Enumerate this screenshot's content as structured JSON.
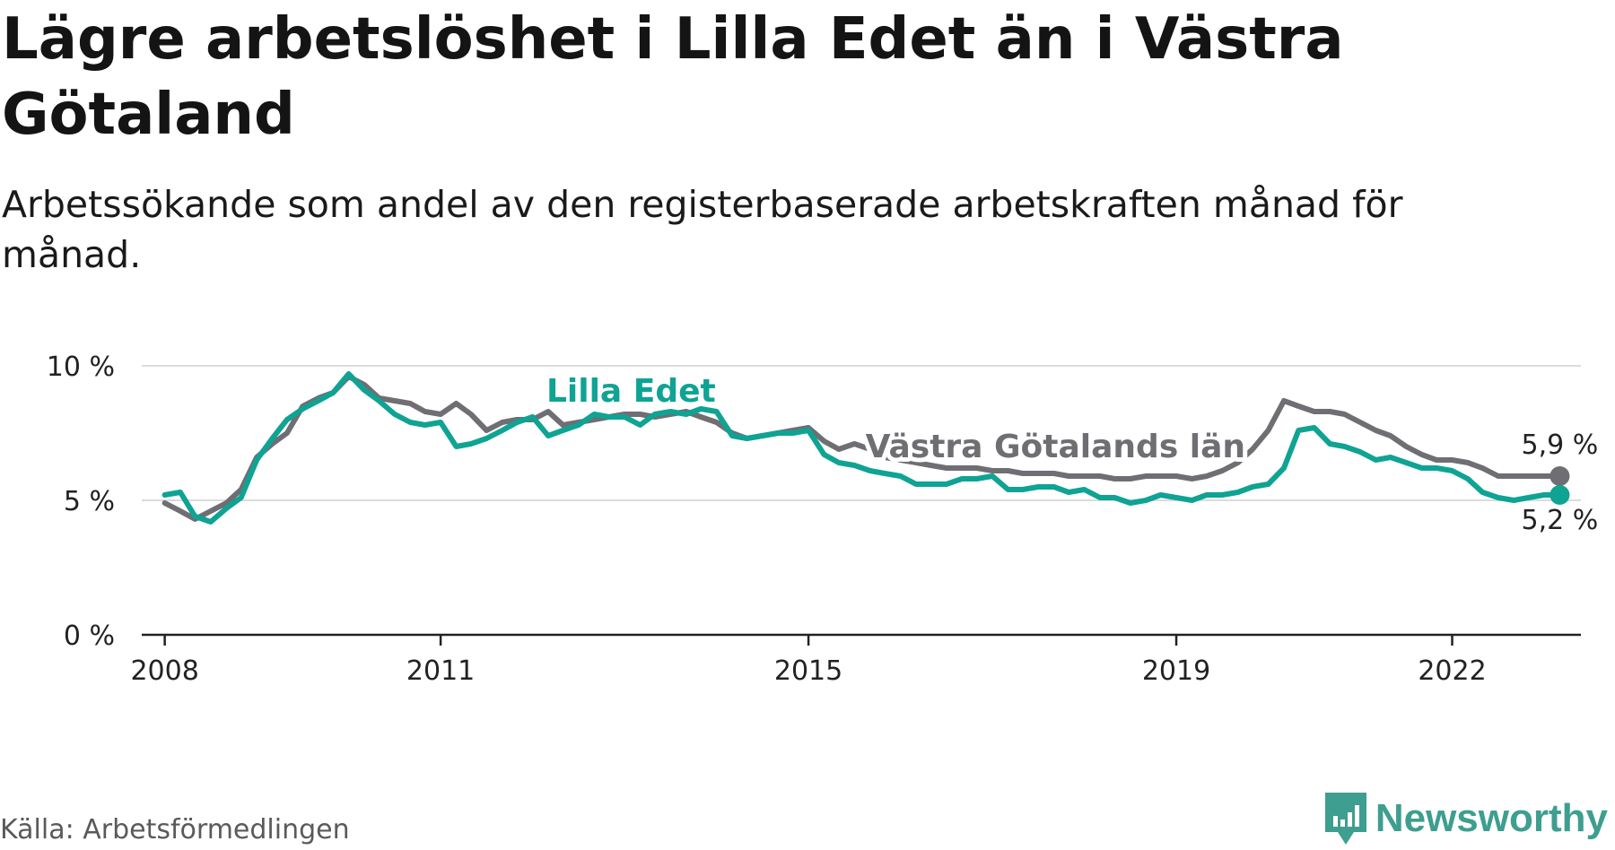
{
  "title": "Lägre arbetslöshet i Lilla Edet än i Västra Götaland",
  "subtitle": "Arbetssökande som andel av den registerbaserade arbetskraften månad för månad.",
  "source": "Källa: Arbetsförmedlingen",
  "brand": "Newsworthy",
  "chart_data": {
    "type": "line",
    "title": "Lägre arbetslöshet i Lilla Edet än i Västra Götaland",
    "xlabel": "",
    "ylabel": "",
    "xlim": [
      2007.75,
      2023.4
    ],
    "ylim": [
      0,
      10
    ],
    "yticks": [
      0,
      5,
      10
    ],
    "ytick_labels": [
      "0 %",
      "5 %",
      "10 %"
    ],
    "xticks": [
      2008,
      2011,
      2015,
      2019,
      2022
    ],
    "xtick_labels": [
      "2008",
      "2011",
      "2015",
      "2019",
      "2022"
    ],
    "grid": true,
    "series": [
      {
        "name": "Västra Götalands län",
        "color": "#6e6e73",
        "end_label": "5,9 %",
        "x": [
          2008.0,
          2008.17,
          2008.33,
          2008.5,
          2008.67,
          2008.83,
          2009.0,
          2009.17,
          2009.33,
          2009.5,
          2009.67,
          2009.83,
          2010.0,
          2010.17,
          2010.33,
          2010.5,
          2010.67,
          2010.83,
          2011.0,
          2011.17,
          2011.33,
          2011.5,
          2011.67,
          2011.83,
          2012.0,
          2012.17,
          2012.33,
          2012.5,
          2012.67,
          2012.83,
          2013.0,
          2013.17,
          2013.33,
          2013.5,
          2013.67,
          2013.83,
          2014.0,
          2014.17,
          2014.33,
          2014.5,
          2014.67,
          2014.83,
          2015.0,
          2015.17,
          2015.33,
          2015.5,
          2015.67,
          2015.83,
          2016.0,
          2016.17,
          2016.33,
          2016.5,
          2016.67,
          2016.83,
          2017.0,
          2017.17,
          2017.33,
          2017.5,
          2017.67,
          2017.83,
          2018.0,
          2018.17,
          2018.33,
          2018.5,
          2018.67,
          2018.83,
          2019.0,
          2019.17,
          2019.33,
          2019.5,
          2019.67,
          2019.83,
          2020.0,
          2020.17,
          2020.33,
          2020.5,
          2020.67,
          2020.83,
          2021.0,
          2021.17,
          2021.33,
          2021.5,
          2021.67,
          2021.83,
          2022.0,
          2022.17,
          2022.33,
          2022.5,
          2022.67,
          2022.83,
          2023.0,
          2023.17
        ],
        "values": [
          4.9,
          4.6,
          4.3,
          4.6,
          4.9,
          5.4,
          6.6,
          7.1,
          7.5,
          8.5,
          8.8,
          9.0,
          9.6,
          9.3,
          8.8,
          8.7,
          8.6,
          8.3,
          8.2,
          8.6,
          8.2,
          7.6,
          7.9,
          8.0,
          8.0,
          8.3,
          7.8,
          7.9,
          8.0,
          8.1,
          8.2,
          8.2,
          8.1,
          8.2,
          8.3,
          8.1,
          7.9,
          7.5,
          7.3,
          7.4,
          7.5,
          7.6,
          7.7,
          7.2,
          6.9,
          7.1,
          6.9,
          6.6,
          6.5,
          6.4,
          6.3,
          6.2,
          6.2,
          6.2,
          6.1,
          6.1,
          6.0,
          6.0,
          6.0,
          5.9,
          5.9,
          5.9,
          5.8,
          5.8,
          5.9,
          5.9,
          5.9,
          5.8,
          5.9,
          6.1,
          6.4,
          6.9,
          7.6,
          8.7,
          8.5,
          8.3,
          8.3,
          8.2,
          7.9,
          7.6,
          7.4,
          7.0,
          6.7,
          6.5,
          6.5,
          6.4,
          6.2,
          5.9,
          5.9,
          5.9,
          5.9,
          5.9
        ]
      },
      {
        "name": "Lilla Edet",
        "color": "#0fa394",
        "end_label": "5,2 %",
        "x": [
          2008.0,
          2008.17,
          2008.33,
          2008.5,
          2008.67,
          2008.83,
          2009.0,
          2009.17,
          2009.33,
          2009.5,
          2009.67,
          2009.83,
          2010.0,
          2010.17,
          2010.33,
          2010.5,
          2010.67,
          2010.83,
          2011.0,
          2011.17,
          2011.33,
          2011.5,
          2011.67,
          2011.83,
          2012.0,
          2012.17,
          2012.33,
          2012.5,
          2012.67,
          2012.83,
          2013.0,
          2013.17,
          2013.33,
          2013.5,
          2013.67,
          2013.83,
          2014.0,
          2014.17,
          2014.33,
          2014.5,
          2014.67,
          2014.83,
          2015.0,
          2015.17,
          2015.33,
          2015.5,
          2015.67,
          2015.83,
          2016.0,
          2016.17,
          2016.33,
          2016.5,
          2016.67,
          2016.83,
          2017.0,
          2017.17,
          2017.33,
          2017.5,
          2017.67,
          2017.83,
          2018.0,
          2018.17,
          2018.33,
          2018.5,
          2018.67,
          2018.83,
          2019.0,
          2019.17,
          2019.33,
          2019.5,
          2019.67,
          2019.83,
          2020.0,
          2020.17,
          2020.33,
          2020.5,
          2020.67,
          2020.83,
          2021.0,
          2021.17,
          2021.33,
          2021.5,
          2021.67,
          2021.83,
          2022.0,
          2022.17,
          2022.33,
          2022.5,
          2022.67,
          2022.83,
          2023.0,
          2023.17
        ],
        "values": [
          5.2,
          5.3,
          4.4,
          4.2,
          4.7,
          5.1,
          6.5,
          7.3,
          8.0,
          8.4,
          8.7,
          9.0,
          9.7,
          9.1,
          8.7,
          8.2,
          7.9,
          7.8,
          7.9,
          7.0,
          7.1,
          7.3,
          7.6,
          7.9,
          8.1,
          7.4,
          7.6,
          7.8,
          8.2,
          8.1,
          8.1,
          7.8,
          8.2,
          8.3,
          8.2,
          8.4,
          8.3,
          7.4,
          7.3,
          7.4,
          7.5,
          7.5,
          7.6,
          6.7,
          6.4,
          6.3,
          6.1,
          6.0,
          5.9,
          5.6,
          5.6,
          5.6,
          5.8,
          5.8,
          5.9,
          5.4,
          5.4,
          5.5,
          5.5,
          5.3,
          5.4,
          5.1,
          5.1,
          4.9,
          5.0,
          5.2,
          5.1,
          5.0,
          5.2,
          5.2,
          5.3,
          5.5,
          5.6,
          6.2,
          7.6,
          7.7,
          7.1,
          7.0,
          6.8,
          6.5,
          6.6,
          6.4,
          6.2,
          6.2,
          6.1,
          5.8,
          5.3,
          5.1,
          5.0,
          5.1,
          5.2,
          5.2
        ]
      }
    ]
  }
}
